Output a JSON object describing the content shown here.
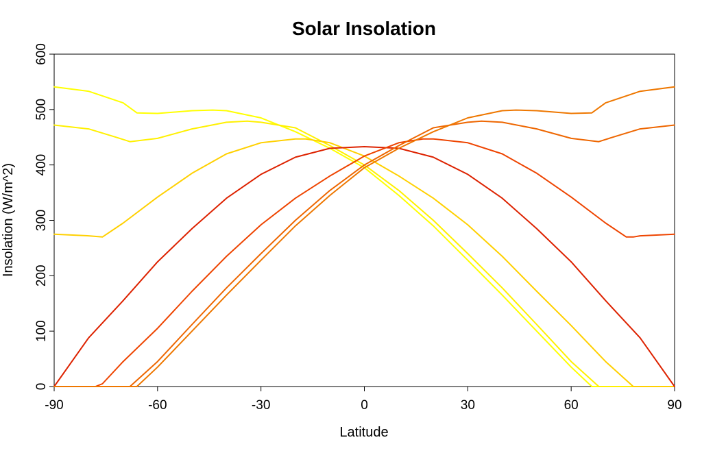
{
  "chart_data": {
    "type": "line",
    "title": "Solar Insolation",
    "xlabel": "Latitude",
    "ylabel": "Insolation (W/m^2)",
    "xlim": [
      -90,
      90
    ],
    "ylim": [
      0,
      600
    ],
    "x_ticks": [
      -90,
      -60,
      -30,
      0,
      30,
      60,
      90
    ],
    "y_ticks": [
      0,
      100,
      200,
      300,
      400,
      500,
      600
    ],
    "x_tick_labels": [
      "-90",
      "-60",
      "-30",
      "0",
      "30",
      "60",
      "90"
    ],
    "y_tick_labels": [
      "0",
      "100",
      "200",
      "300",
      "400",
      "500",
      "600"
    ],
    "legend": "none",
    "grid": false,
    "series": [
      {
        "name": "series-1",
        "color": "#ffff00",
        "x": [
          -90,
          -80,
          -70,
          -66,
          -60,
          -50,
          -44,
          -40,
          -30,
          -20,
          -10,
          0,
          10,
          20,
          30,
          40,
          50,
          60,
          66,
          70,
          90
        ],
        "values": [
          541,
          533,
          512,
          494,
          493,
          498,
          499,
          498,
          485,
          460,
          430,
          395,
          345,
          290,
          228,
          165,
          100,
          35,
          0,
          0,
          0
        ]
      },
      {
        "name": "series-2",
        "color": "#fff000",
        "x": [
          -90,
          -80,
          -72,
          -68,
          -60,
          -50,
          -40,
          -34,
          -30,
          -20,
          -10,
          0,
          10,
          20,
          30,
          40,
          50,
          60,
          68,
          70,
          90
        ],
        "values": [
          472,
          465,
          450,
          442,
          448,
          465,
          477,
          479,
          477,
          467,
          435,
          400,
          354,
          300,
          240,
          178,
          112,
          45,
          0,
          0,
          0
        ]
      },
      {
        "name": "series-3",
        "color": "#ffd000",
        "x": [
          -90,
          -80,
          -76,
          -70,
          -60,
          -50,
          -40,
          -30,
          -20,
          -17,
          -10,
          0,
          10,
          20,
          30,
          40,
          50,
          60,
          70,
          78,
          90
        ],
        "values": [
          275,
          272,
          270,
          295,
          342,
          385,
          420,
          440,
          447,
          447,
          440,
          416,
          380,
          340,
          292,
          235,
          172,
          110,
          45,
          0,
          0
        ]
      },
      {
        "name": "series-4",
        "color": "#dd2200",
        "x": [
          -90,
          -80,
          -70,
          -60,
          -50,
          -40,
          -30,
          -20,
          -10,
          0,
          10,
          20,
          30,
          40,
          50,
          60,
          70,
          80,
          90
        ],
        "values": [
          0,
          88,
          155,
          225,
          285,
          340,
          383,
          414,
          430,
          433,
          430,
          414,
          383,
          340,
          285,
          225,
          155,
          88,
          0
        ]
      },
      {
        "name": "series-5",
        "color": "#ee4400",
        "x": [
          -90,
          -78,
          -76,
          -70,
          -60,
          -50,
          -40,
          -30,
          -20,
          -10,
          0,
          10,
          17,
          20,
          30,
          40,
          50,
          60,
          70,
          76,
          78,
          80,
          90
        ],
        "values": [
          0,
          0,
          5,
          45,
          105,
          172,
          235,
          292,
          340,
          380,
          416,
          440,
          447,
          447,
          440,
          420,
          385,
          342,
          295,
          270,
          270,
          272,
          275
        ]
      },
      {
        "name": "series-6",
        "color": "#ee6600",
        "x": [
          -90,
          -70,
          -68,
          -60,
          -50,
          -40,
          -30,
          -20,
          -10,
          0,
          10,
          20,
          30,
          34,
          40,
          50,
          60,
          68,
          72,
          80,
          90
        ],
        "values": [
          0,
          0,
          0,
          45,
          112,
          178,
          240,
          300,
          354,
          400,
          435,
          467,
          477,
          479,
          477,
          465,
          448,
          442,
          450,
          465,
          472
        ]
      },
      {
        "name": "series-7",
        "color": "#ee7700",
        "x": [
          -90,
          -70,
          -66,
          -60,
          -50,
          -40,
          -30,
          -20,
          -10,
          0,
          10,
          20,
          30,
          40,
          44,
          50,
          60,
          66,
          70,
          80,
          90
        ],
        "values": [
          0,
          0,
          0,
          35,
          100,
          165,
          228,
          290,
          345,
          395,
          430,
          460,
          485,
          498,
          499,
          498,
          493,
          494,
          512,
          533,
          541
        ]
      }
    ]
  }
}
